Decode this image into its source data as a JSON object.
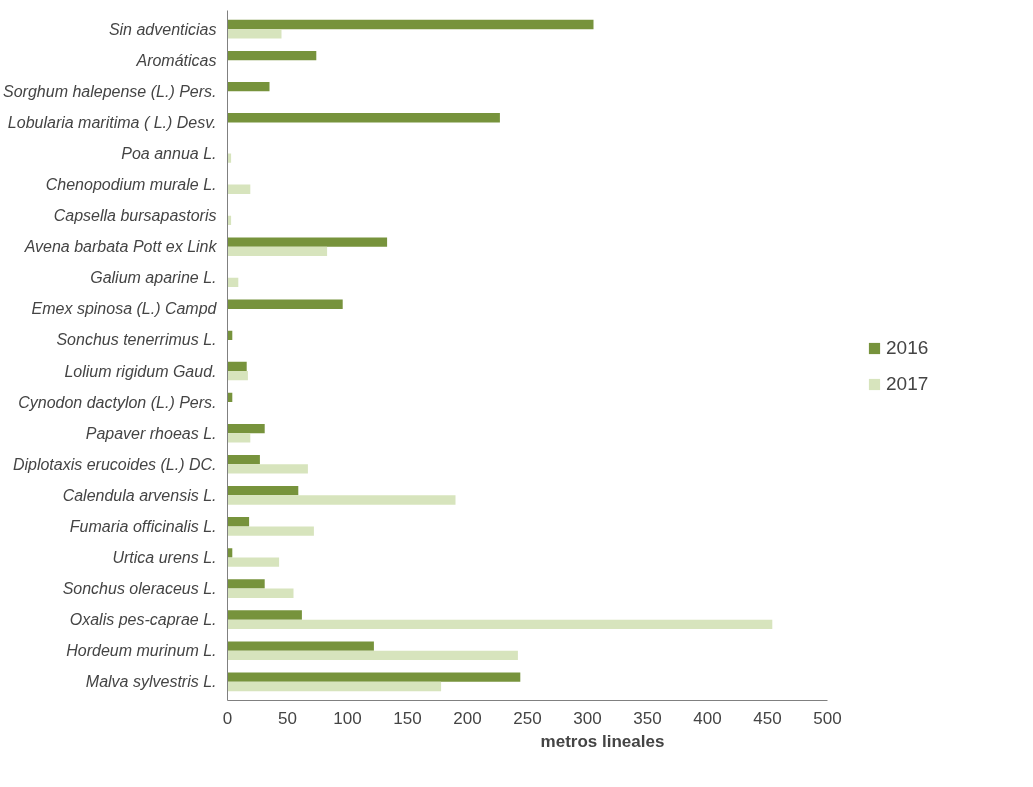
{
  "chart_data": {
    "type": "bar",
    "orientation": "horizontal",
    "xlabel": "metros lineales",
    "categories": [
      "Sin adventicias",
      "Aromáticas",
      "Sorghum halepense (L.) Pers.",
      "Lobularia maritima ( L.) Desv.",
      "Poa annua L.",
      "Chenopodium murale L.",
      "Capsella bursapastoris",
      "Avena barbata Pott ex Link",
      "Galium aparine L.",
      "Emex spinosa (L.) Campd",
      "Sonchus tenerrimus L.",
      "Lolium rigidum Gaud.",
      "Cynodon dactylon (L.) Pers.",
      "Papaver rhoeas L.",
      "Diplotaxis erucoides (L.) DC.",
      "Calendula arvensis L.",
      "Fumaria officinalis L.",
      "Urtica urens L.",
      "Sonchus oleraceus L.",
      "Oxalis pes-caprae L.",
      "Hordeum murinum L.",
      "Malva sylvestris L."
    ],
    "series": [
      {
        "name": "2016",
        "color": "#77933c",
        "values": [
          305,
          74,
          35,
          227,
          null,
          null,
          null,
          133,
          null,
          96,
          4,
          16,
          4,
          31,
          27,
          59,
          18,
          4,
          31,
          62,
          122,
          244
        ]
      },
      {
        "name": "2017",
        "color": "#d7e4bd",
        "values": [
          45,
          null,
          null,
          null,
          3,
          19,
          3,
          83,
          9,
          null,
          null,
          17,
          null,
          19,
          67,
          190,
          72,
          43,
          55,
          454,
          242,
          178
        ]
      }
    ],
    "xlim": [
      0,
      500
    ],
    "xticks": [
      0,
      50,
      100,
      150,
      200,
      250,
      300,
      350,
      400,
      450,
      500
    ],
    "grid": false,
    "legend": "right"
  }
}
